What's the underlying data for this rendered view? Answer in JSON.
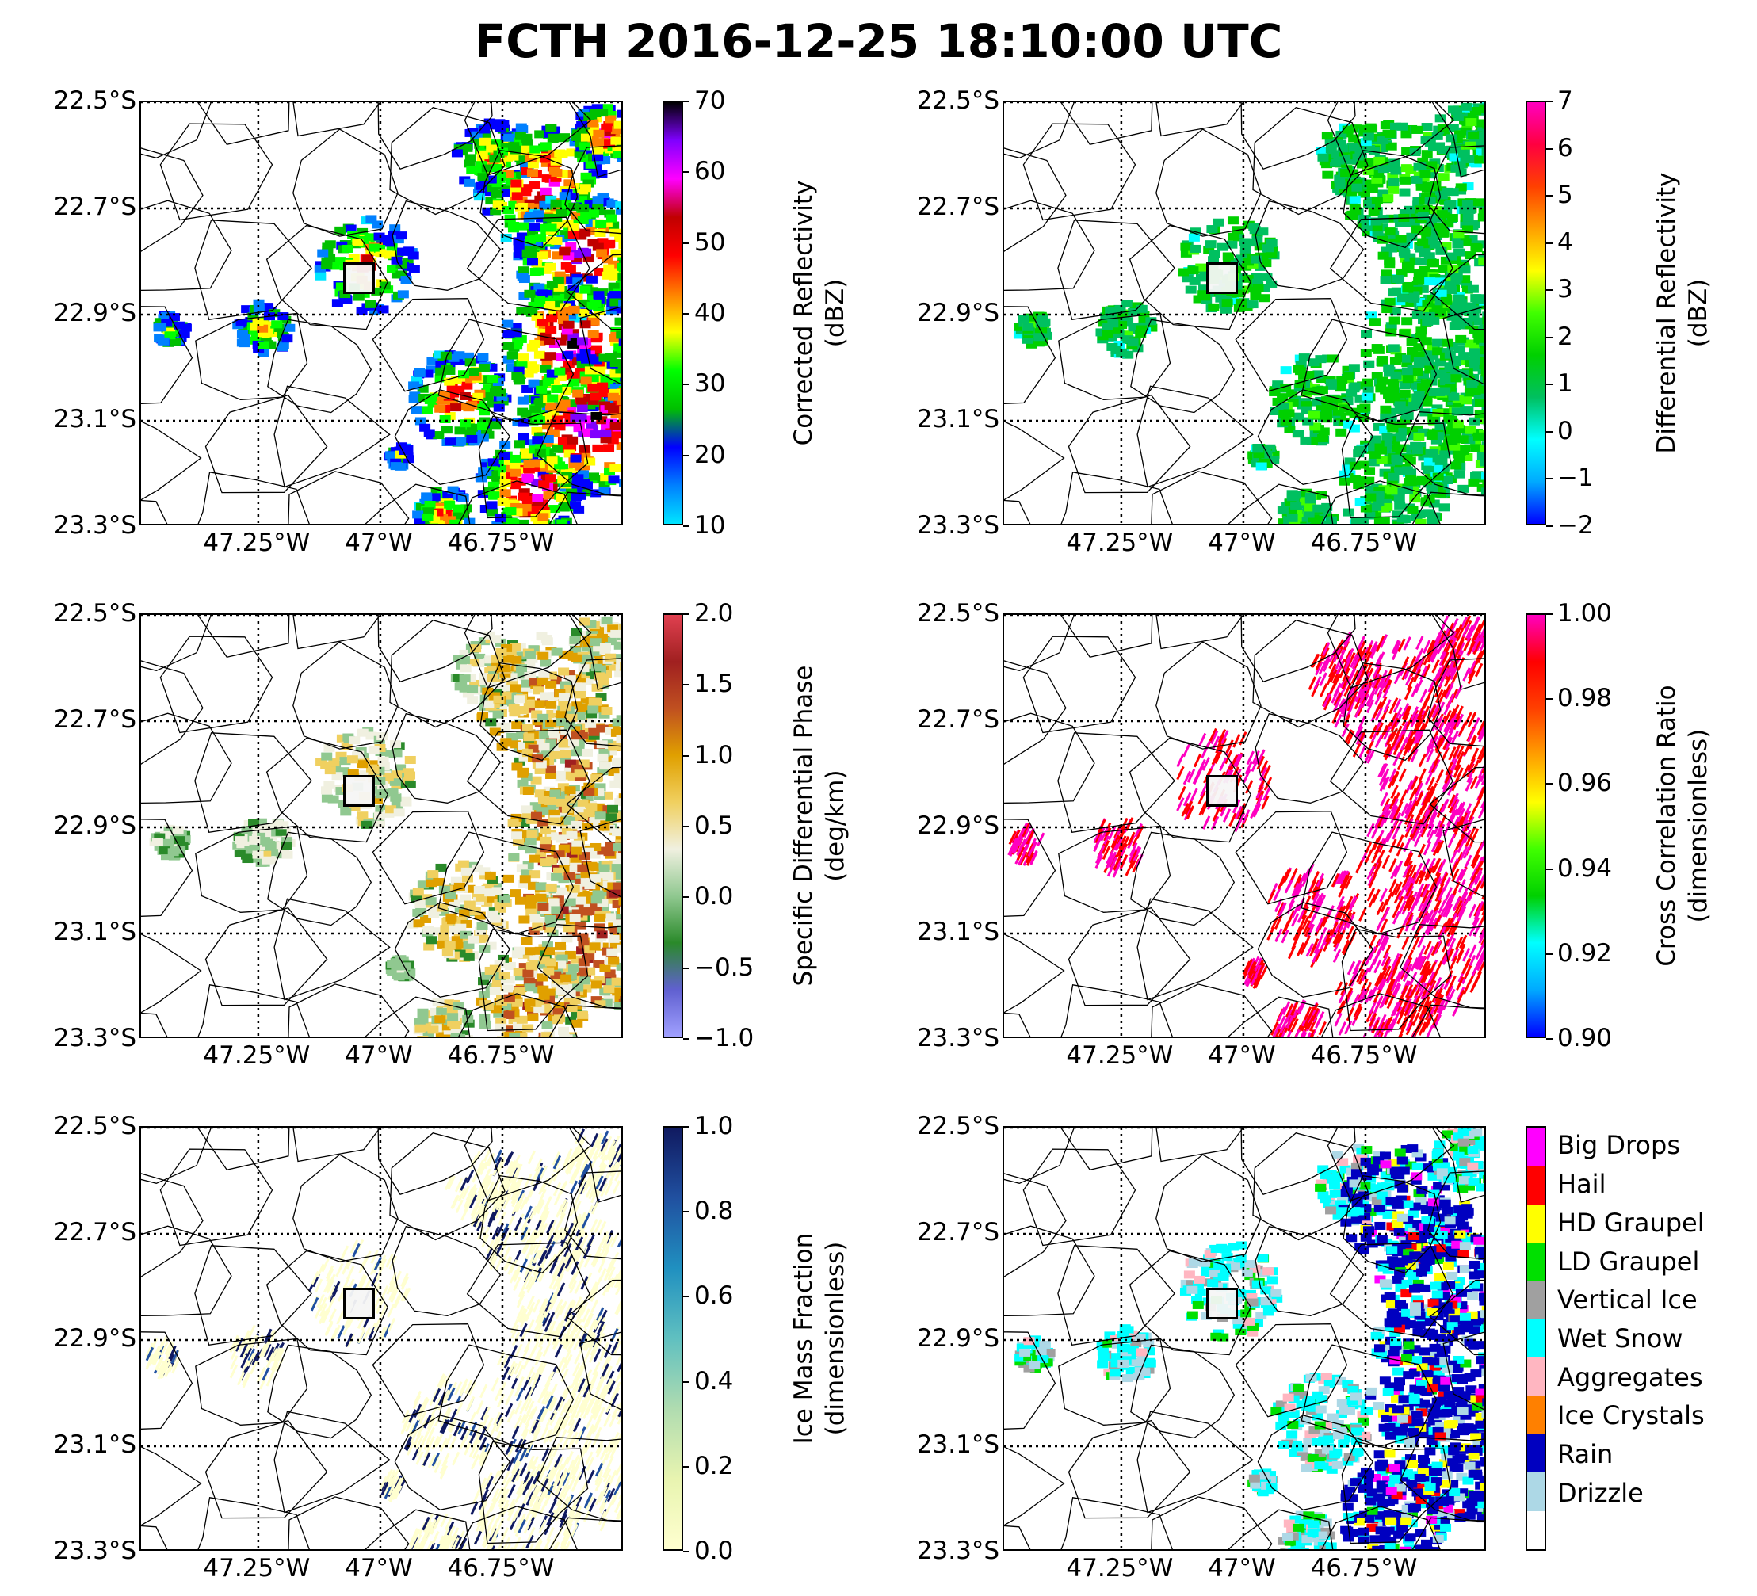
{
  "title": "FCTH 2016-12-25 18:10:00 UTC",
  "axes": {
    "lat_ticks": [
      "22.5°S",
      "22.7°S",
      "22.9°S",
      "23.1°S",
      "23.3°S"
    ],
    "lon_ticks": [
      "47.25°W",
      "47°W",
      "46.75°W"
    ],
    "lat_range": [
      -23.3,
      -22.5
    ],
    "lon_range": [
      -47.49,
      -46.5
    ],
    "grid": "dotted"
  },
  "panels": [
    {
      "id": "reflectivity",
      "colorbar_label_line1": "Corrected Reflectivity",
      "colorbar_label_line2": "(dBZ)",
      "colorbar_ticks": [
        "70",
        "60",
        "50",
        "40",
        "30",
        "20",
        "10"
      ],
      "range": [
        10,
        70
      ],
      "colors": [
        "#00e5ff",
        "#0080ff",
        "#0000ff",
        "#00c000",
        "#00ff00",
        "#ffff00",
        "#ff8000",
        "#ff0000",
        "#c00000",
        "#ff00ff",
        "#8000ff",
        "#000000"
      ]
    },
    {
      "id": "zdr",
      "colorbar_label_line1": "Differential Reflectivity",
      "colorbar_label_line2": "(dBZ)",
      "colorbar_ticks": [
        "7",
        "6",
        "5",
        "4",
        "3",
        "2",
        "1",
        "0",
        "−1",
        "−2"
      ],
      "range": [
        -2,
        7
      ],
      "colors": [
        "#0000ff",
        "#00aaff",
        "#00ffff",
        "#00c060",
        "#00d000",
        "#40ff00",
        "#ffff00",
        "#ffa000",
        "#ff4000",
        "#ff0040",
        "#ff00c0"
      ]
    },
    {
      "id": "kdp",
      "colorbar_label_line1": "Specific Differential Phase",
      "colorbar_label_line2": "(deg/km)",
      "colorbar_ticks": [
        "2.0",
        "1.5",
        "1.0",
        "0.5",
        "0.0",
        "−0.5",
        "−1.0"
      ],
      "range": [
        -1,
        2
      ],
      "colors": [
        "#a0a0ff",
        "#6060d0",
        "#2a8a2a",
        "#90c890",
        "#f0f0e0",
        "#f0d060",
        "#e0a000",
        "#c05020",
        "#a02020",
        "#e04050"
      ]
    },
    {
      "id": "rhohv",
      "colorbar_label_line1": "Cross Correlation Ratio",
      "colorbar_label_line2": "(dimensionless)",
      "colorbar_ticks": [
        "1.00",
        "0.98",
        "0.96",
        "0.94",
        "0.92",
        "0.90"
      ],
      "range": [
        0.9,
        1.0
      ],
      "colors": [
        "#0000ff",
        "#00aaff",
        "#00ffff",
        "#00d000",
        "#40ff00",
        "#ffff00",
        "#ffa000",
        "#ff4000",
        "#ff0000",
        "#ff00c0"
      ]
    },
    {
      "id": "ice_fraction",
      "colorbar_label_line1": "Ice Mass Fraction",
      "colorbar_label_line2": "(dimensionless)",
      "colorbar_ticks": [
        "1.0",
        "0.8",
        "0.6",
        "0.4",
        "0.2",
        "0.0"
      ],
      "range": [
        0,
        1
      ],
      "colors": [
        "#ffffd0",
        "#e8f4b0",
        "#b0dcb0",
        "#60c0c0",
        "#2090c0",
        "#2050a0",
        "#101a60"
      ]
    },
    {
      "id": "hydrometeor",
      "legend": [
        {
          "label": "Big Drops",
          "color": "#ff00ff"
        },
        {
          "label": "Hail",
          "color": "#ff0000"
        },
        {
          "label": "HD Graupel",
          "color": "#ffff00"
        },
        {
          "label": "LD Graupel",
          "color": "#00e000"
        },
        {
          "label": "Vertical Ice",
          "color": "#a0a0a0"
        },
        {
          "label": "Wet Snow",
          "color": "#00ffff"
        },
        {
          "label": "Aggregates",
          "color": "#ffb6c1"
        },
        {
          "label": "Ice Crystals",
          "color": "#ff8000"
        },
        {
          "label": "Rain",
          "color": "#0000c0"
        },
        {
          "label": "Drizzle",
          "color": "#add8e6"
        },
        {
          "label": "",
          "color": "#ffffff"
        }
      ]
    }
  ]
}
